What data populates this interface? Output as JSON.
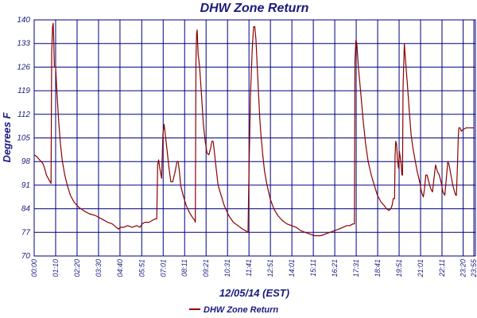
{
  "chart_data": {
    "type": "line",
    "title": "DHW Zone Return",
    "xlabel": "12/05/14 (EST)",
    "ylabel": "Degrees F",
    "ylim": [
      70,
      140
    ],
    "xlim": [
      0,
      1440
    ],
    "y_ticks": [
      {
        "value": 70,
        "label": "70"
      },
      {
        "value": 77,
        "label": "77"
      },
      {
        "value": 84,
        "label": "84"
      },
      {
        "value": 91,
        "label": "91"
      },
      {
        "value": 98,
        "label": "98"
      },
      {
        "value": 105,
        "label": "105"
      },
      {
        "value": 112,
        "label": "112"
      },
      {
        "value": 119,
        "label": "119"
      },
      {
        "value": 126,
        "label": "126"
      },
      {
        "value": 133,
        "label": "133"
      },
      {
        "value": 140,
        "label": "140"
      }
    ],
    "x_ticks": [
      {
        "value": 0,
        "label": "00:00"
      },
      {
        "value": 70,
        "label": "01:10"
      },
      {
        "value": 140,
        "label": "02:20"
      },
      {
        "value": 210,
        "label": "03:30"
      },
      {
        "value": 280,
        "label": "04:40"
      },
      {
        "value": 351,
        "label": "05:51"
      },
      {
        "value": 421,
        "label": "07:01"
      },
      {
        "value": 491,
        "label": "08:11"
      },
      {
        "value": 561,
        "label": "09:21"
      },
      {
        "value": 631,
        "label": "10:31"
      },
      {
        "value": 701,
        "label": "11:41"
      },
      {
        "value": 771,
        "label": "12:51"
      },
      {
        "value": 841,
        "label": "14:01"
      },
      {
        "value": 911,
        "label": "15:11"
      },
      {
        "value": 981,
        "label": "16:21"
      },
      {
        "value": 1051,
        "label": "17:31"
      },
      {
        "value": 1121,
        "label": "18:41"
      },
      {
        "value": 1191,
        "label": "19:51"
      },
      {
        "value": 1261,
        "label": "21:01"
      },
      {
        "value": 1331,
        "label": "22:11"
      },
      {
        "value": 1400,
        "label": "23:20"
      },
      {
        "value": 1435,
        "label": "23:55"
      }
    ],
    "grid": true,
    "legend_position": "bottom",
    "series": [
      {
        "name": "DHW Zone Return",
        "color": "#8b0000",
        "points": [
          [
            0,
            100
          ],
          [
            8,
            99.5
          ],
          [
            18,
            98.5
          ],
          [
            28,
            97.5
          ],
          [
            34,
            96
          ],
          [
            40,
            94
          ],
          [
            46,
            93
          ],
          [
            52,
            92
          ],
          [
            55,
            91.5
          ],
          [
            57,
            130
          ],
          [
            60,
            138
          ],
          [
            62,
            139
          ],
          [
            64,
            133
          ],
          [
            66,
            126
          ],
          [
            70,
            126
          ],
          [
            74,
            119
          ],
          [
            80,
            110
          ],
          [
            86,
            103
          ],
          [
            92,
            98
          ],
          [
            100,
            94
          ],
          [
            108,
            91
          ],
          [
            118,
            88
          ],
          [
            130,
            86
          ],
          [
            145,
            84.5
          ],
          [
            160,
            83.5
          ],
          [
            180,
            82.5
          ],
          [
            200,
            82
          ],
          [
            220,
            81
          ],
          [
            240,
            80
          ],
          [
            255,
            79.5
          ],
          [
            268,
            78.5
          ],
          [
            275,
            78
          ],
          [
            282,
            78.5
          ],
          [
            292,
            78.5
          ],
          [
            305,
            79
          ],
          [
            320,
            78.5
          ],
          [
            335,
            79
          ],
          [
            345,
            78.5
          ],
          [
            352,
            79.5
          ],
          [
            360,
            80
          ],
          [
            375,
            80
          ],
          [
            385,
            80.5
          ],
          [
            395,
            81
          ],
          [
            400,
            81
          ],
          [
            403,
            97
          ],
          [
            406,
            98.5
          ],
          [
            410,
            96
          ],
          [
            416,
            93
          ],
          [
            420,
            106
          ],
          [
            424,
            109
          ],
          [
            428,
            106
          ],
          [
            434,
            101
          ],
          [
            440,
            96
          ],
          [
            446,
            92
          ],
          [
            452,
            92
          ],
          [
            460,
            95
          ],
          [
            466,
            98
          ],
          [
            470,
            98
          ],
          [
            474,
            95
          ],
          [
            478,
            91
          ],
          [
            486,
            88
          ],
          [
            496,
            85
          ],
          [
            506,
            83
          ],
          [
            516,
            81.5
          ],
          [
            524,
            80.5
          ],
          [
            526,
            80
          ],
          [
            528,
            128
          ],
          [
            530,
            136
          ],
          [
            532,
            137
          ],
          [
            535,
            130
          ],
          [
            540,
            126
          ],
          [
            546,
            118
          ],
          [
            552,
            109
          ],
          [
            558,
            104
          ],
          [
            564,
            100.5
          ],
          [
            570,
            100
          ],
          [
            576,
            102
          ],
          [
            580,
            104
          ],
          [
            584,
            104
          ],
          [
            588,
            101
          ],
          [
            594,
            96
          ],
          [
            600,
            91
          ],
          [
            610,
            88
          ],
          [
            620,
            85
          ],
          [
            635,
            82
          ],
          [
            650,
            80
          ],
          [
            665,
            79
          ],
          [
            680,
            78
          ],
          [
            690,
            77.5
          ],
          [
            698,
            77
          ],
          [
            700,
            90
          ],
          [
            706,
            118
          ],
          [
            712,
            132
          ],
          [
            716,
            138
          ],
          [
            720,
            138
          ],
          [
            724,
            134
          ],
          [
            730,
            122
          ],
          [
            736,
            111
          ],
          [
            740,
            106
          ],
          [
            746,
            100
          ],
          [
            752,
            95
          ],
          [
            760,
            91
          ],
          [
            770,
            87
          ],
          [
            782,
            84
          ],
          [
            795,
            82
          ],
          [
            810,
            80.5
          ],
          [
            825,
            79.5
          ],
          [
            840,
            79
          ],
          [
            855,
            78.5
          ],
          [
            870,
            77.5
          ],
          [
            885,
            77
          ],
          [
            900,
            76.5
          ],
          [
            915,
            76
          ],
          [
            935,
            76
          ],
          [
            950,
            76.5
          ],
          [
            965,
            77
          ],
          [
            980,
            77.5
          ],
          [
            995,
            78
          ],
          [
            1008,
            78.5
          ],
          [
            1020,
            79
          ],
          [
            1030,
            79
          ],
          [
            1040,
            79.5
          ],
          [
            1045,
            79.5
          ],
          [
            1047,
            128
          ],
          [
            1050,
            134
          ],
          [
            1053,
            133
          ],
          [
            1058,
            126
          ],
          [
            1066,
            118
          ],
          [
            1074,
            110
          ],
          [
            1082,
            103
          ],
          [
            1090,
            98
          ],
          [
            1100,
            94
          ],
          [
            1110,
            91
          ],
          [
            1120,
            88
          ],
          [
            1132,
            86
          ],
          [
            1142,
            85
          ],
          [
            1150,
            84
          ],
          [
            1158,
            83.5
          ],
          [
            1164,
            84
          ],
          [
            1168,
            85
          ],
          [
            1172,
            87
          ],
          [
            1176,
            87
          ],
          [
            1178,
            100
          ],
          [
            1180,
            104
          ],
          [
            1183,
            103
          ],
          [
            1186,
            98
          ],
          [
            1189,
            96
          ],
          [
            1192,
            101
          ],
          [
            1195,
            99
          ],
          [
            1198,
            97
          ],
          [
            1200,
            94
          ],
          [
            1202,
            94
          ],
          [
            1204,
            120
          ],
          [
            1208,
            133
          ],
          [
            1212,
            128
          ],
          [
            1218,
            121
          ],
          [
            1224,
            113
          ],
          [
            1230,
            106
          ],
          [
            1236,
            102
          ],
          [
            1242,
            99
          ],
          [
            1250,
            95
          ],
          [
            1258,
            92
          ],
          [
            1264,
            89
          ],
          [
            1270,
            87.5
          ],
          [
            1274,
            90
          ],
          [
            1278,
            94
          ],
          [
            1282,
            94
          ],
          [
            1288,
            92
          ],
          [
            1294,
            90
          ],
          [
            1300,
            89
          ],
          [
            1306,
            94
          ],
          [
            1310,
            97
          ],
          [
            1316,
            95
          ],
          [
            1322,
            94
          ],
          [
            1328,
            92
          ],
          [
            1334,
            89
          ],
          [
            1340,
            88
          ],
          [
            1346,
            94
          ],
          [
            1350,
            98
          ],
          [
            1354,
            97
          ],
          [
            1360,
            94
          ],
          [
            1366,
            91
          ],
          [
            1372,
            89
          ],
          [
            1376,
            88
          ],
          [
            1378,
            88
          ],
          [
            1382,
            98
          ],
          [
            1384,
            105
          ],
          [
            1386,
            108
          ],
          [
            1390,
            108
          ],
          [
            1394,
            107
          ],
          [
            1400,
            107.5
          ],
          [
            1410,
            108
          ],
          [
            1420,
            108
          ],
          [
            1435,
            108
          ]
        ]
      }
    ]
  }
}
